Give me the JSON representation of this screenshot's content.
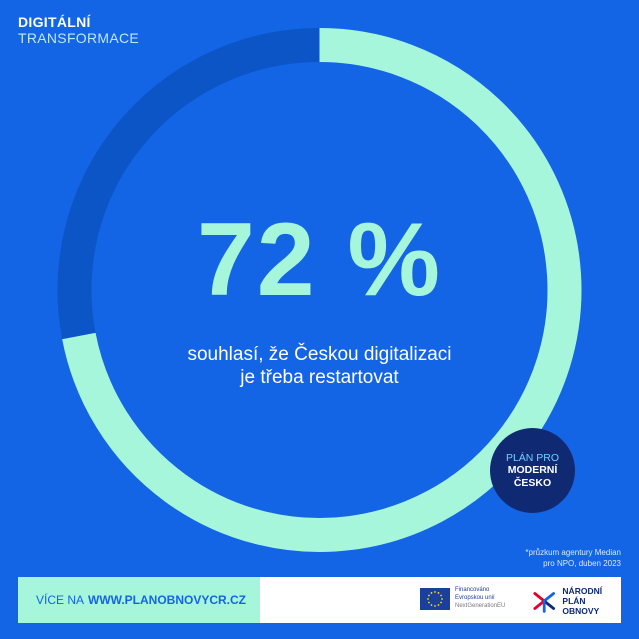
{
  "header": {
    "line1": "DIGITÁLNÍ",
    "line2": "TRANSFORMACE"
  },
  "chart_data": {
    "type": "pie",
    "variant": "donut",
    "values": [
      72,
      28
    ],
    "colors": [
      "#a6f6dc",
      "#0b55c7"
    ],
    "title": "",
    "center_value": "72 %",
    "center_label_lines": [
      "souhlasí, že Českou digitalizaci",
      "je třeba restartovat"
    ]
  },
  "badge": {
    "line1": "PLÁN PRO",
    "line2": "MODERNÍ",
    "line3": "ČESKO"
  },
  "note": {
    "line1": "*průzkum agentury Median",
    "line2": "pro NPO, duben 2023"
  },
  "footer": {
    "more_label": "VÍCE NA",
    "url": "WWW.PLANOBNOVYCR.CZ",
    "eu_line1": "Financováno",
    "eu_line2": "Evropskou unií",
    "eu_line3": "NextGenerationEU",
    "npo_line1": "NÁRODNÍ",
    "npo_line2": "PLÁN OBNOVY"
  },
  "colors": {
    "background": "#1464e6",
    "accent": "#a6f6dc",
    "navy": "#0f2a73"
  }
}
